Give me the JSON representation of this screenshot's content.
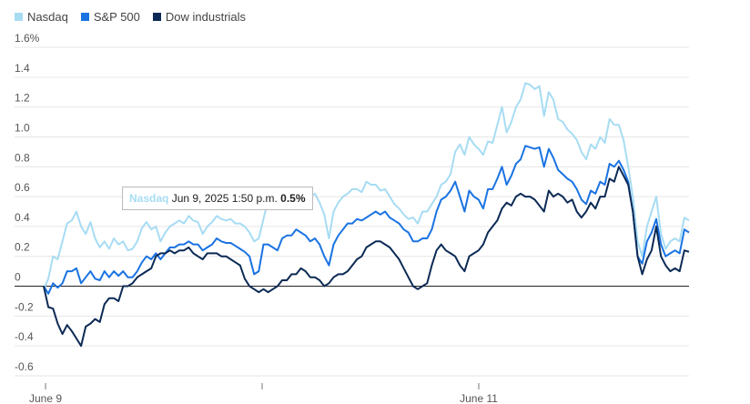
{
  "chart_data": {
    "type": "line",
    "legend_position": "top-left",
    "grid": true,
    "ylim": [
      -0.6,
      1.6
    ],
    "y_ticks": [
      "1.6%",
      "1.4",
      "1.2",
      "1.0",
      "0.8",
      "0.6",
      "0.4",
      "0.2",
      "0",
      "-0.2",
      "-0.4",
      "-0.6"
    ],
    "x_labels": [
      "June 9",
      "June 11"
    ],
    "series": [
      {
        "name": "Nasdaq",
        "color": "#a7dcf3",
        "values": [
          -0.02,
          0.05,
          0.2,
          0.18,
          0.3,
          0.42,
          0.44,
          0.5,
          0.4,
          0.35,
          0.43,
          0.32,
          0.26,
          0.3,
          0.25,
          0.32,
          0.28,
          0.3,
          0.24,
          0.25,
          0.3,
          0.39,
          0.43,
          0.38,
          0.4,
          0.3,
          0.36,
          0.4,
          0.42,
          0.44,
          0.42,
          0.47,
          0.44,
          0.43,
          0.35,
          0.4,
          0.43,
          0.47,
          0.45,
          0.44,
          0.45,
          0.42,
          0.42,
          0.4,
          0.36,
          0.3,
          0.32,
          0.45,
          0.58,
          0.55,
          0.6,
          0.55,
          0.58,
          0.52,
          0.6,
          0.62,
          0.65,
          0.6,
          0.62,
          0.56,
          0.48,
          0.32,
          0.5,
          0.56,
          0.6,
          0.62,
          0.65,
          0.65,
          0.63,
          0.7,
          0.68,
          0.68,
          0.64,
          0.65,
          0.6,
          0.55,
          0.52,
          0.48,
          0.45,
          0.46,
          0.42,
          0.5,
          0.5,
          0.55,
          0.6,
          0.68,
          0.7,
          0.75,
          0.9,
          0.95,
          0.88,
          1.0,
          0.95,
          0.92,
          0.88,
          0.97,
          0.96,
          1.08,
          1.2,
          1.03,
          1.1,
          1.2,
          1.25,
          1.36,
          1.35,
          1.32,
          1.34,
          1.14,
          1.3,
          1.25,
          1.12,
          1.1,
          1.05,
          1.02,
          0.98,
          0.9,
          0.85,
          0.95,
          0.92,
          1.0,
          0.96,
          1.12,
          1.08,
          1.08,
          0.98,
          0.8,
          0.6,
          0.3,
          0.2,
          0.4,
          0.5,
          0.6,
          0.35,
          0.25,
          0.3,
          0.32,
          0.3,
          0.46,
          0.44
        ]
      },
      {
        "name": "S&P 500",
        "color": "#1a73e2",
        "values": [
          0.0,
          -0.05,
          0.02,
          -0.01,
          0.02,
          0.1,
          0.1,
          0.12,
          0.02,
          0.06,
          0.1,
          0.05,
          0.04,
          0.1,
          0.06,
          0.1,
          0.07,
          0.1,
          0.06,
          0.06,
          0.1,
          0.16,
          0.2,
          0.18,
          0.22,
          0.18,
          0.22,
          0.26,
          0.26,
          0.28,
          0.28,
          0.3,
          0.28,
          0.28,
          0.24,
          0.26,
          0.28,
          0.32,
          0.3,
          0.29,
          0.29,
          0.27,
          0.25,
          0.23,
          0.2,
          0.08,
          0.1,
          0.28,
          0.28,
          0.26,
          0.24,
          0.32,
          0.34,
          0.34,
          0.38,
          0.36,
          0.34,
          0.3,
          0.32,
          0.28,
          0.2,
          0.14,
          0.28,
          0.34,
          0.38,
          0.42,
          0.42,
          0.45,
          0.44,
          0.46,
          0.48,
          0.5,
          0.48,
          0.5,
          0.46,
          0.44,
          0.42,
          0.38,
          0.36,
          0.3,
          0.3,
          0.32,
          0.32,
          0.38,
          0.5,
          0.58,
          0.6,
          0.64,
          0.7,
          0.6,
          0.5,
          0.64,
          0.6,
          0.58,
          0.52,
          0.65,
          0.65,
          0.72,
          0.8,
          0.68,
          0.74,
          0.82,
          0.85,
          0.94,
          0.93,
          0.92,
          0.93,
          0.8,
          0.92,
          0.86,
          0.78,
          0.75,
          0.72,
          0.7,
          0.65,
          0.58,
          0.55,
          0.64,
          0.62,
          0.7,
          0.68,
          0.82,
          0.8,
          0.84,
          0.78,
          0.7,
          0.5,
          0.2,
          0.15,
          0.3,
          0.36,
          0.45,
          0.28,
          0.2,
          0.22,
          0.24,
          0.22,
          0.38,
          0.36
        ]
      },
      {
        "name": "Dow industrials",
        "color": "#0c2a55",
        "values": [
          0.0,
          -0.14,
          -0.15,
          -0.25,
          -0.32,
          -0.26,
          -0.3,
          -0.35,
          -0.4,
          -0.27,
          -0.25,
          -0.22,
          -0.24,
          -0.12,
          -0.08,
          -0.08,
          -0.1,
          0.0,
          0.0,
          0.02,
          0.06,
          0.08,
          0.1,
          0.12,
          0.2,
          0.22,
          0.22,
          0.24,
          0.22,
          0.24,
          0.24,
          0.26,
          0.22,
          0.2,
          0.18,
          0.22,
          0.22,
          0.22,
          0.2,
          0.2,
          0.18,
          0.16,
          0.14,
          0.05,
          0.0,
          -0.02,
          -0.04,
          -0.02,
          -0.04,
          -0.02,
          0.0,
          0.04,
          0.04,
          0.08,
          0.08,
          0.12,
          0.1,
          0.06,
          0.06,
          0.04,
          0.0,
          0.02,
          0.06,
          0.08,
          0.08,
          0.1,
          0.14,
          0.18,
          0.2,
          0.26,
          0.28,
          0.3,
          0.3,
          0.28,
          0.26,
          0.22,
          0.18,
          0.12,
          0.06,
          0.0,
          -0.02,
          0.0,
          0.02,
          0.14,
          0.24,
          0.28,
          0.24,
          0.22,
          0.2,
          0.14,
          0.1,
          0.2,
          0.22,
          0.24,
          0.28,
          0.36,
          0.4,
          0.44,
          0.52,
          0.56,
          0.54,
          0.6,
          0.62,
          0.6,
          0.6,
          0.58,
          0.54,
          0.5,
          0.64,
          0.6,
          0.62,
          0.6,
          0.56,
          0.58,
          0.5,
          0.46,
          0.5,
          0.56,
          0.52,
          0.6,
          0.6,
          0.72,
          0.7,
          0.8,
          0.74,
          0.68,
          0.5,
          0.2,
          0.08,
          0.18,
          0.24,
          0.4,
          0.2,
          0.14,
          0.1,
          0.12,
          0.1,
          0.24,
          0.23
        ]
      }
    ],
    "tooltip": {
      "series": "Nasdaq",
      "datetime": "Jun 9, 2025 1:50 p.m.",
      "value": "0.5%"
    }
  }
}
